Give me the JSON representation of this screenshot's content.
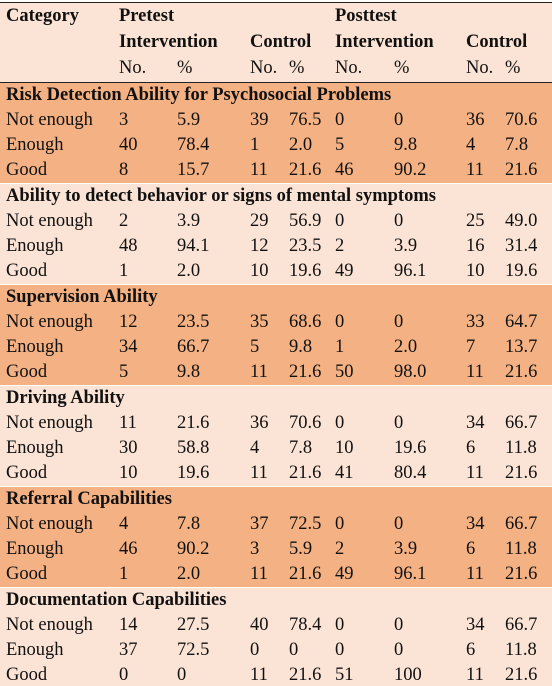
{
  "header": {
    "category": "Category",
    "pretest": "Pretest",
    "posttest": "Posttest",
    "groups": [
      "Intervention",
      "Control",
      "Intervention",
      "Control"
    ],
    "subheaders": [
      "No.",
      "%",
      "No.",
      "%",
      "No.",
      "%",
      "No.",
      "%"
    ]
  },
  "sections": [
    {
      "title": "Risk Detection Ability for Psychosocial Problems",
      "rows": [
        {
          "label": "Not enough",
          "cells": [
            "3",
            "5.9",
            "39",
            "76.5",
            "0",
            "0",
            "36",
            "70.6"
          ]
        },
        {
          "label": "Enough",
          "cells": [
            "40",
            "78.4",
            "1",
            "2.0",
            "5",
            "9.8",
            "4",
            "7.8"
          ]
        },
        {
          "label": "Good",
          "cells": [
            "8",
            "15.7",
            "11",
            "21.6",
            "46",
            "90.2",
            "11",
            "21.6"
          ]
        }
      ]
    },
    {
      "title": "Ability to detect behavior or signs of mental symptoms",
      "rows": [
        {
          "label": "Not enough",
          "cells": [
            "2",
            "3.9",
            "29",
            "56.9",
            "0",
            "0",
            "25",
            "49.0"
          ]
        },
        {
          "label": "Enough",
          "cells": [
            "48",
            "94.1",
            "12",
            "23.5",
            "2",
            "3.9",
            "16",
            "31.4"
          ]
        },
        {
          "label": "Good",
          "cells": [
            "1",
            "2.0",
            "10",
            "19.6",
            "49",
            "96.1",
            "10",
            "19.6"
          ]
        }
      ]
    },
    {
      "title": "Supervision Ability",
      "rows": [
        {
          "label": "Not enough",
          "cells": [
            "12",
            "23.5",
            "35",
            "68.6",
            "0",
            "0",
            "33",
            "64.7"
          ]
        },
        {
          "label": "Enough",
          "cells": [
            "34",
            "66.7",
            "5",
            "9.8",
            "1",
            "2.0",
            "7",
            "13.7"
          ]
        },
        {
          "label": "Good",
          "cells": [
            "5",
            "9.8",
            "11",
            "21.6",
            "50",
            "98.0",
            "11",
            "21.6"
          ]
        }
      ]
    },
    {
      "title": "Driving Ability",
      "rows": [
        {
          "label": "Not enough",
          "cells": [
            "11",
            "21.6",
            "36",
            "70.6",
            "0",
            "0",
            "34",
            "66.7"
          ]
        },
        {
          "label": "Enough",
          "cells": [
            "30",
            "58.8",
            "4",
            "7.8",
            "10",
            "19.6",
            "6",
            "11.8"
          ]
        },
        {
          "label": "Good",
          "cells": [
            "10",
            "19.6",
            "11",
            "21.6",
            "41",
            "80.4",
            "11",
            "21.6"
          ]
        }
      ]
    },
    {
      "title": "Referral Capabilities",
      "rows": [
        {
          "label": "Not enough",
          "cells": [
            "4",
            "7.8",
            "37",
            "72.5",
            "0",
            "0",
            "34",
            "66.7"
          ]
        },
        {
          "label": "Enough",
          "cells": [
            "46",
            "90.2",
            "3",
            "5.9",
            "2",
            "3.9",
            "6",
            "11.8"
          ]
        },
        {
          "label": "Good",
          "cells": [
            "1",
            "2.0",
            "11",
            "21.6",
            "49",
            "96.1",
            "11",
            "21.6"
          ]
        }
      ]
    },
    {
      "title": "Documentation Capabilities",
      "rows": [
        {
          "label": "Not enough",
          "cells": [
            "14",
            "27.5",
            "40",
            "78.4",
            "0",
            "0",
            "34",
            "66.7"
          ]
        },
        {
          "label": "Enough",
          "cells": [
            "37",
            "72.5",
            "0",
            "0",
            "0",
            "0",
            "6",
            "11.8"
          ]
        },
        {
          "label": "Good",
          "cells": [
            "0",
            "0",
            "11",
            "21.6",
            "51",
            "100",
            "11",
            "21.6"
          ]
        }
      ]
    }
  ]
}
